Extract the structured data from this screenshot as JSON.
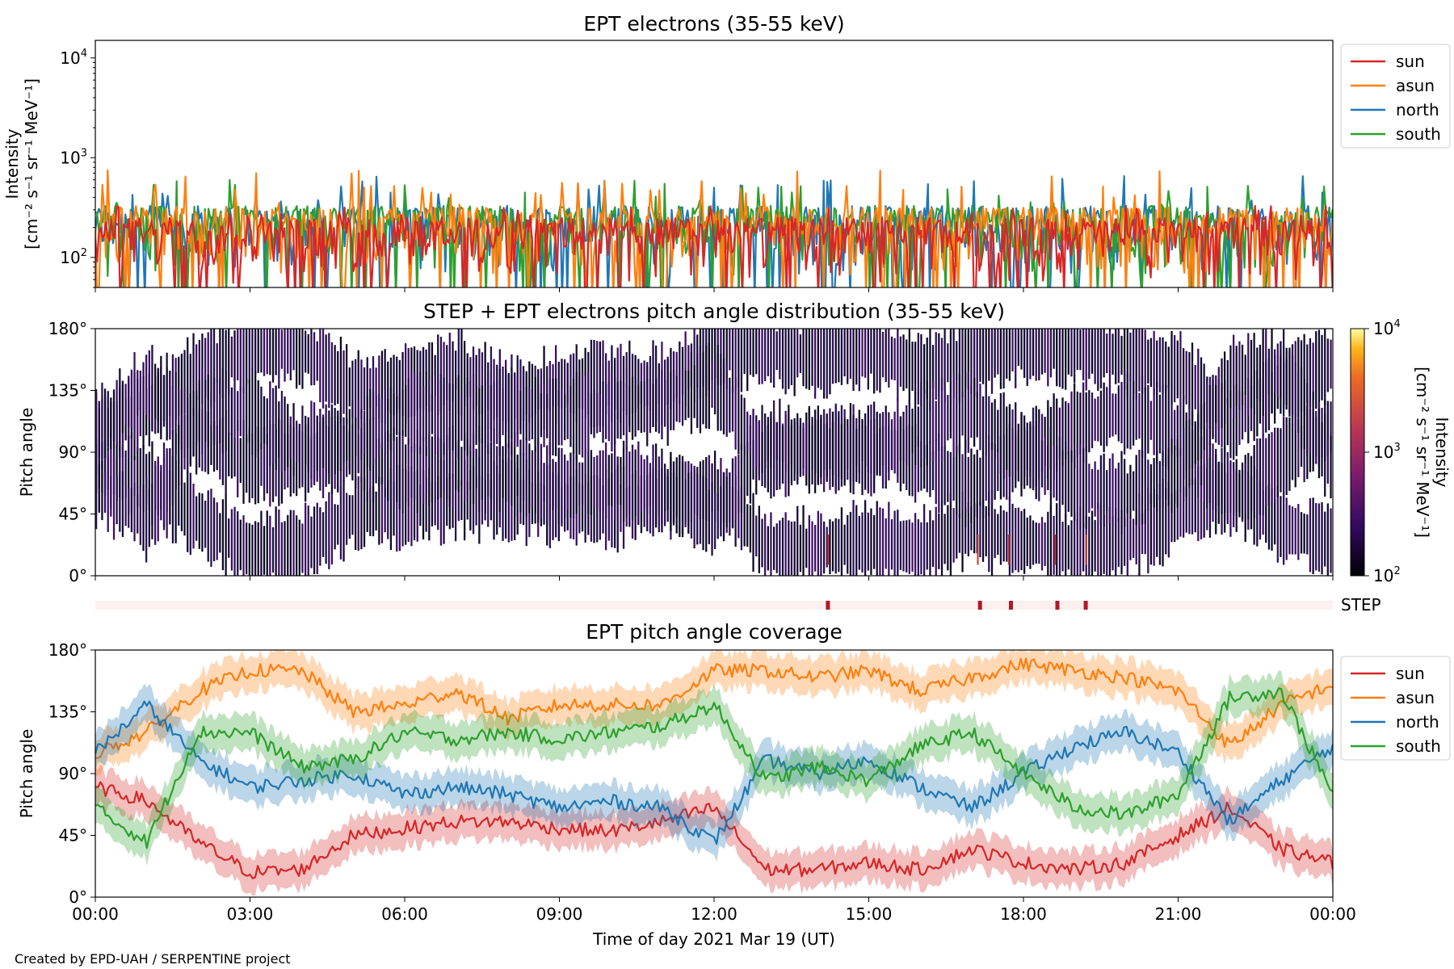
{
  "footer": {
    "credit": "Created by EPD-UAH / SERPENTINE project"
  },
  "colors": {
    "sun": "#d62728",
    "asun": "#ff7f0e",
    "north": "#1f77b4",
    "south": "#2ca02c",
    "step_bar_bg": "#fdf0ee",
    "step_marker": "#b2182b"
  },
  "chart_data": [
    {
      "id": "intensity",
      "type": "line",
      "title": "EPT electrons (35-55 keV)",
      "ylabel_line1": "Intensity",
      "ylabel_units": "[cm⁻² s⁻¹ sr⁻¹ MeV⁻¹]",
      "yscale": "log",
      "ylim": [
        50,
        15000
      ],
      "yticks": [
        {
          "base": "10",
          "exp": "2"
        },
        {
          "base": "10",
          "exp": "3"
        },
        {
          "base": "10",
          "exp": "4"
        }
      ],
      "xlim_hours": [
        0,
        24
      ],
      "legend": {
        "placement": "outside-right-top",
        "entries": [
          "sun",
          "asun",
          "north",
          "south"
        ]
      },
      "series": [
        {
          "name": "sun",
          "color": "#d62728",
          "typical_range": [
            55,
            250
          ],
          "spikes_max": 330
        },
        {
          "name": "asun",
          "color": "#ff7f0e",
          "typical_range": [
            60,
            320
          ],
          "spikes_max": 760
        },
        {
          "name": "north",
          "color": "#1f77b4",
          "typical_range": [
            60,
            330
          ],
          "spikes_max": 660
        },
        {
          "name": "south",
          "color": "#2ca02c",
          "typical_range": [
            60,
            330
          ],
          "spikes_max": 610
        }
      ]
    },
    {
      "id": "pad",
      "type": "heatmap",
      "title": "STEP + EPT electrons pitch angle distribution (35-55 keV)",
      "ylabel": "Pitch angle",
      "ylim": [
        0,
        180
      ],
      "yticks": [
        "0°",
        "45°",
        "90°",
        "135°",
        "180°"
      ],
      "colorbar": {
        "label": "Intensity",
        "units": "[cm⁻² s⁻¹ sr⁻¹ MeV⁻¹]",
        "scale": "log",
        "range": [
          100,
          10000
        ],
        "ticks": [
          {
            "base": "10",
            "exp": "2"
          },
          {
            "base": "10",
            "exp": "3"
          },
          {
            "base": "10",
            "exp": "4"
          }
        ],
        "colormap": "inferno"
      },
      "bright_pixels_hours": [
        14.2,
        17.1,
        17.7,
        18.6,
        19.2
      ]
    },
    {
      "id": "step",
      "type": "bar",
      "label": "STEP",
      "marker_hours": [
        14.2,
        17.15,
        17.75,
        18.65,
        19.2
      ]
    },
    {
      "id": "coverage",
      "type": "area",
      "title": "EPT pitch angle coverage",
      "ylabel": "Pitch angle",
      "ylim": [
        0,
        180
      ],
      "yticks": [
        "0°",
        "45°",
        "90°",
        "135°",
        "180°"
      ],
      "xlabel": "Time of day 2021 Mar 19 (UT)",
      "xticks": [
        "00:00",
        "03:00",
        "06:00",
        "09:00",
        "12:00",
        "15:00",
        "18:00",
        "21:00",
        "00:00"
      ],
      "legend": {
        "placement": "outside-right-top",
        "entries": [
          "sun",
          "asun",
          "north",
          "south"
        ]
      },
      "band_halfwidth_deg": 13,
      "x_hours": [
        0,
        1,
        2,
        3,
        4,
        5,
        6,
        7,
        8,
        9,
        10,
        11,
        12,
        13,
        14,
        15,
        16,
        17,
        18,
        19,
        20,
        21,
        22,
        23,
        24
      ],
      "series": [
        {
          "name": "sun",
          "color": "#d62728",
          "values": [
            80,
            70,
            40,
            18,
            20,
            45,
            50,
            55,
            55,
            50,
            48,
            55,
            65,
            20,
            20,
            25,
            20,
            35,
            25,
            20,
            25,
            45,
            65,
            35,
            25
          ]
        },
        {
          "name": "asun",
          "color": "#ff7f0e",
          "values": [
            105,
            120,
            150,
            165,
            165,
            135,
            140,
            150,
            130,
            140,
            140,
            140,
            165,
            165,
            160,
            165,
            150,
            160,
            170,
            165,
            160,
            150,
            110,
            140,
            155
          ]
        },
        {
          "name": "north",
          "color": "#1f77b4",
          "values": [
            105,
            140,
            100,
            80,
            85,
            90,
            75,
            80,
            75,
            65,
            70,
            65,
            40,
            100,
            90,
            100,
            80,
            65,
            90,
            110,
            120,
            105,
            55,
            85,
            110
          ]
        },
        {
          "name": "south",
          "color": "#2ca02c",
          "values": [
            65,
            40,
            120,
            120,
            95,
            100,
            120,
            115,
            120,
            115,
            120,
            125,
            140,
            85,
            95,
            85,
            110,
            120,
            90,
            65,
            60,
            75,
            145,
            150,
            75
          ]
        }
      ]
    }
  ]
}
